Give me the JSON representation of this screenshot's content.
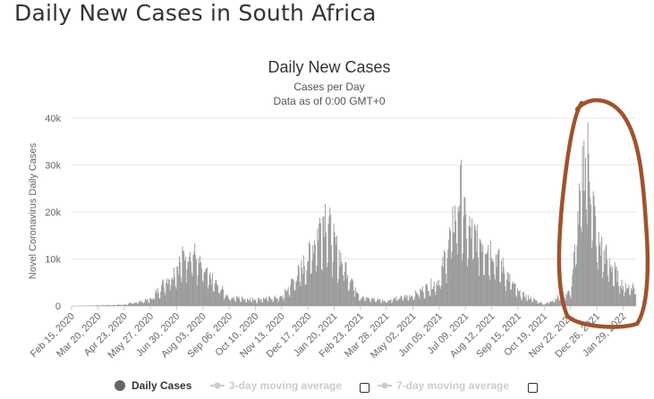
{
  "page": {
    "heading": "Daily New Cases in South Africa"
  },
  "chart_data": {
    "type": "bar",
    "title": "Daily New Cases",
    "subtitle_lines": [
      "Cases per Day",
      "Data as of 0:00 GMT+0"
    ],
    "ylabel": "Novel Coronavirus Daily Cases",
    "xlabel": "",
    "ylim": [
      0,
      40000
    ],
    "y_ticks": [
      "0",
      "10k",
      "20k",
      "30k",
      "40k"
    ],
    "x_ticks": [
      "Feb 15, 2020",
      "Mar 20, 2020",
      "Apr 23, 2020",
      "May 27, 2020",
      "Jun 30, 2020",
      "Aug 03, 2020",
      "Sep 06, 2020",
      "Oct 10, 2020",
      "Nov 13, 2020",
      "Dec 17, 2020",
      "Jan 20, 2021",
      "Feb 23, 2021",
      "Mar 28, 2021",
      "May 02, 2021",
      "Jun 05, 2021",
      "Jul 09, 2021",
      "Aug 12, 2021",
      "Sep 15, 2021",
      "Oct 19, 2021",
      "Nov 22, 2021",
      "Dec 26, 2021",
      "Jan 29, 2022"
    ],
    "x_range": [
      "2020-02-15",
      "2022-02-15"
    ],
    "grid": true,
    "bar_color": "#999999",
    "series": [
      {
        "name": "Daily Cases",
        "values": [
          {
            "week_of": "2020-02-15",
            "value": 0
          },
          {
            "week_of": "2020-03-20",
            "value": 150
          },
          {
            "week_of": "2020-04-23",
            "value": 300
          },
          {
            "week_of": "2020-05-27",
            "value": 1500
          },
          {
            "week_of": "2020-06-30",
            "value": 9000
          },
          {
            "week_of": "2020-07-17",
            "value": 13500
          },
          {
            "week_of": "2020-08-03",
            "value": 8000
          },
          {
            "week_of": "2020-09-06",
            "value": 2000
          },
          {
            "week_of": "2020-10-10",
            "value": 1500
          },
          {
            "week_of": "2020-11-13",
            "value": 2000
          },
          {
            "week_of": "2020-12-17",
            "value": 11000
          },
          {
            "week_of": "2021-01-08",
            "value": 21500
          },
          {
            "week_of": "2021-01-20",
            "value": 14000
          },
          {
            "week_of": "2021-02-23",
            "value": 2000
          },
          {
            "week_of": "2021-03-28",
            "value": 1200
          },
          {
            "week_of": "2021-05-02",
            "value": 2500
          },
          {
            "week_of": "2021-06-05",
            "value": 6000
          },
          {
            "week_of": "2021-07-03",
            "value": 26500
          },
          {
            "week_of": "2021-07-09",
            "value": 18000
          },
          {
            "week_of": "2021-08-12",
            "value": 13000
          },
          {
            "week_of": "2021-09-15",
            "value": 3000
          },
          {
            "week_of": "2021-10-19",
            "value": 400
          },
          {
            "week_of": "2021-11-22",
            "value": 3500
          },
          {
            "week_of": "2021-12-12",
            "value": 37800
          },
          {
            "week_of": "2021-12-26",
            "value": 15000
          },
          {
            "week_of": "2022-01-29",
            "value": 4500
          }
        ]
      }
    ],
    "legend": {
      "placement": "bottom",
      "items": [
        {
          "label": "Daily Cases",
          "color": "#666666",
          "enabled": true
        },
        {
          "label": "3-day moving average",
          "color": "#cccccc",
          "enabled": false
        },
        {
          "label": "7-day moving average",
          "color": "#cccccc",
          "enabled": false
        }
      ]
    },
    "annotation": {
      "kind": "hand-drawn circle",
      "color": "#a0522d",
      "around": "Dec 26, 2021 peak"
    }
  }
}
